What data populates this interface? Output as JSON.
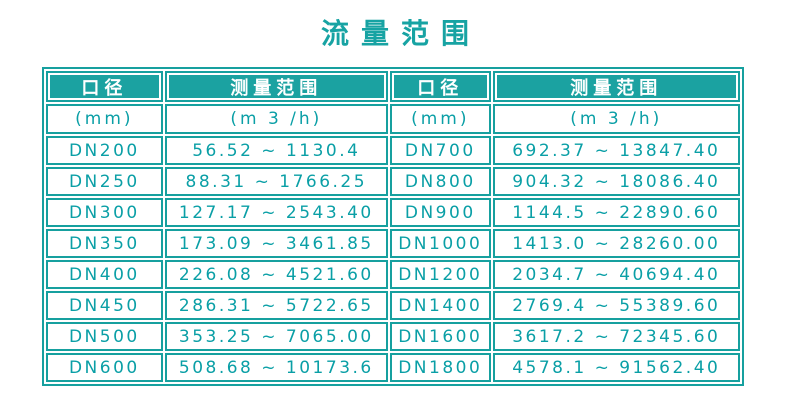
{
  "title": "流量范围",
  "colors": {
    "teal_border": "#16a09f",
    "teal_header_bg": "#1ba2a1",
    "teal_text": "#0a9fa6",
    "header_text": "#ffffff",
    "page_bg": "#ffffff"
  },
  "table": {
    "headers": [
      "口径",
      "测量范围",
      "口径",
      "测量范围"
    ],
    "units": [
      "(mm)",
      "(m 3 /h)",
      "(mm)",
      "(m 3 /h)"
    ],
    "rows": [
      [
        "DN200",
        "56.52 ~ 1130.4",
        "DN700",
        "692.37 ~ 13847.40"
      ],
      [
        "DN250",
        "88.31 ~ 1766.25",
        "DN800",
        "904.32 ~ 18086.40"
      ],
      [
        "DN300",
        "127.17 ~ 2543.40",
        "DN900",
        "1144.5 ~ 22890.60"
      ],
      [
        "DN350",
        "173.09 ~ 3461.85",
        "DN1000",
        "1413.0 ~ 28260.00"
      ],
      [
        "DN400",
        "226.08 ~ 4521.60",
        "DN1200",
        "2034.7 ~ 40694.40"
      ],
      [
        "DN450",
        "286.31 ~ 5722.65",
        "DN1400",
        "2769.4 ~ 55389.60"
      ],
      [
        "DN500",
        "353.25 ~ 7065.00",
        "DN1600",
        "3617.2 ~ 72345.60"
      ],
      [
        "DN600",
        "508.68 ~ 10173.6",
        "DN1800",
        "4578.1 ~ 91562.40"
      ]
    ]
  }
}
